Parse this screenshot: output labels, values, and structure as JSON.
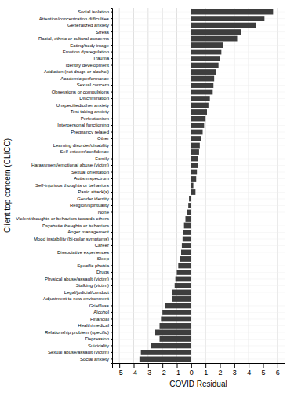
{
  "chart_data": {
    "type": "bar",
    "orientation": "horizontal",
    "categories": [
      "Social anxiety",
      "Sexual abuse/assault (victim)",
      "Suicidality",
      "Depression",
      "Relationship problem (specific)",
      "Health/medical",
      "Financial",
      "Alcohol",
      "Grief/loss",
      "Adjustment to new environment",
      "Legal/judicial/conduct",
      "Stalking (victim)",
      "Physical abuse/assault (victim)",
      "Drugs",
      "Specific phobia",
      "Sleep",
      "Dissociative experiences",
      "Career",
      "Mood instability (bi-polar symptoms)",
      "Anger management",
      "Psychotic thoughts or behaviors",
      "Violent thoughts or behaviors towards others",
      "None",
      "Religion/spirituality",
      "Gender identity",
      "Panic attack(s)",
      "Self-injurious thoughts or behaviors",
      "Autism spectrum",
      "Sexual orientation",
      "Harassment/emotional abuse (victim)",
      "Family",
      "Self-esteem/confidence",
      "Learning disorder/disability",
      "Other",
      "Pregnancy related",
      "Interpersonal functioning",
      "Perfectionism",
      "Test taking anxiety",
      "Unspecified/other anxiety",
      "Discrimination",
      "Obsessions or compulsions",
      "Sexual concern",
      "Academic performance",
      "Addiction (not drugs or alcohol)",
      "Identity development",
      "Trauma",
      "Emotion dysregulation",
      "Eating/body image",
      "Racial, ethnic or cultural concerns",
      "Stress",
      "Generalized anxiety",
      "Attention/concentration difficulties",
      "Social isolation"
    ],
    "values": [
      -3.6,
      -3.5,
      -2.8,
      -2.2,
      -2.5,
      -2.2,
      -2.1,
      -2.0,
      -1.8,
      -1.35,
      -1.3,
      -1.15,
      -1.1,
      -1.0,
      -0.9,
      -0.8,
      -0.7,
      -0.65,
      -0.6,
      -0.55,
      -0.5,
      -0.4,
      -0.3,
      -0.2,
      -0.15,
      0.3,
      0.15,
      0.35,
      0.4,
      0.45,
      0.5,
      0.55,
      0.6,
      0.7,
      0.8,
      0.9,
      1.0,
      1.1,
      1.2,
      1.3,
      1.5,
      1.55,
      1.6,
      1.7,
      1.9,
      2.0,
      2.1,
      2.2,
      3.2,
      3.5,
      4.5,
      5.1,
      5.7
    ],
    "color": "#3d3d3d",
    "xlabel": "COVID Residual",
    "ylabel": "Client top concern (CLICC)",
    "xlim": [
      -5.5,
      6.5
    ],
    "xticks": [
      -5,
      -4,
      -3,
      -2,
      -1,
      0,
      1,
      2,
      3,
      4,
      5,
      6
    ],
    "grid": true
  }
}
